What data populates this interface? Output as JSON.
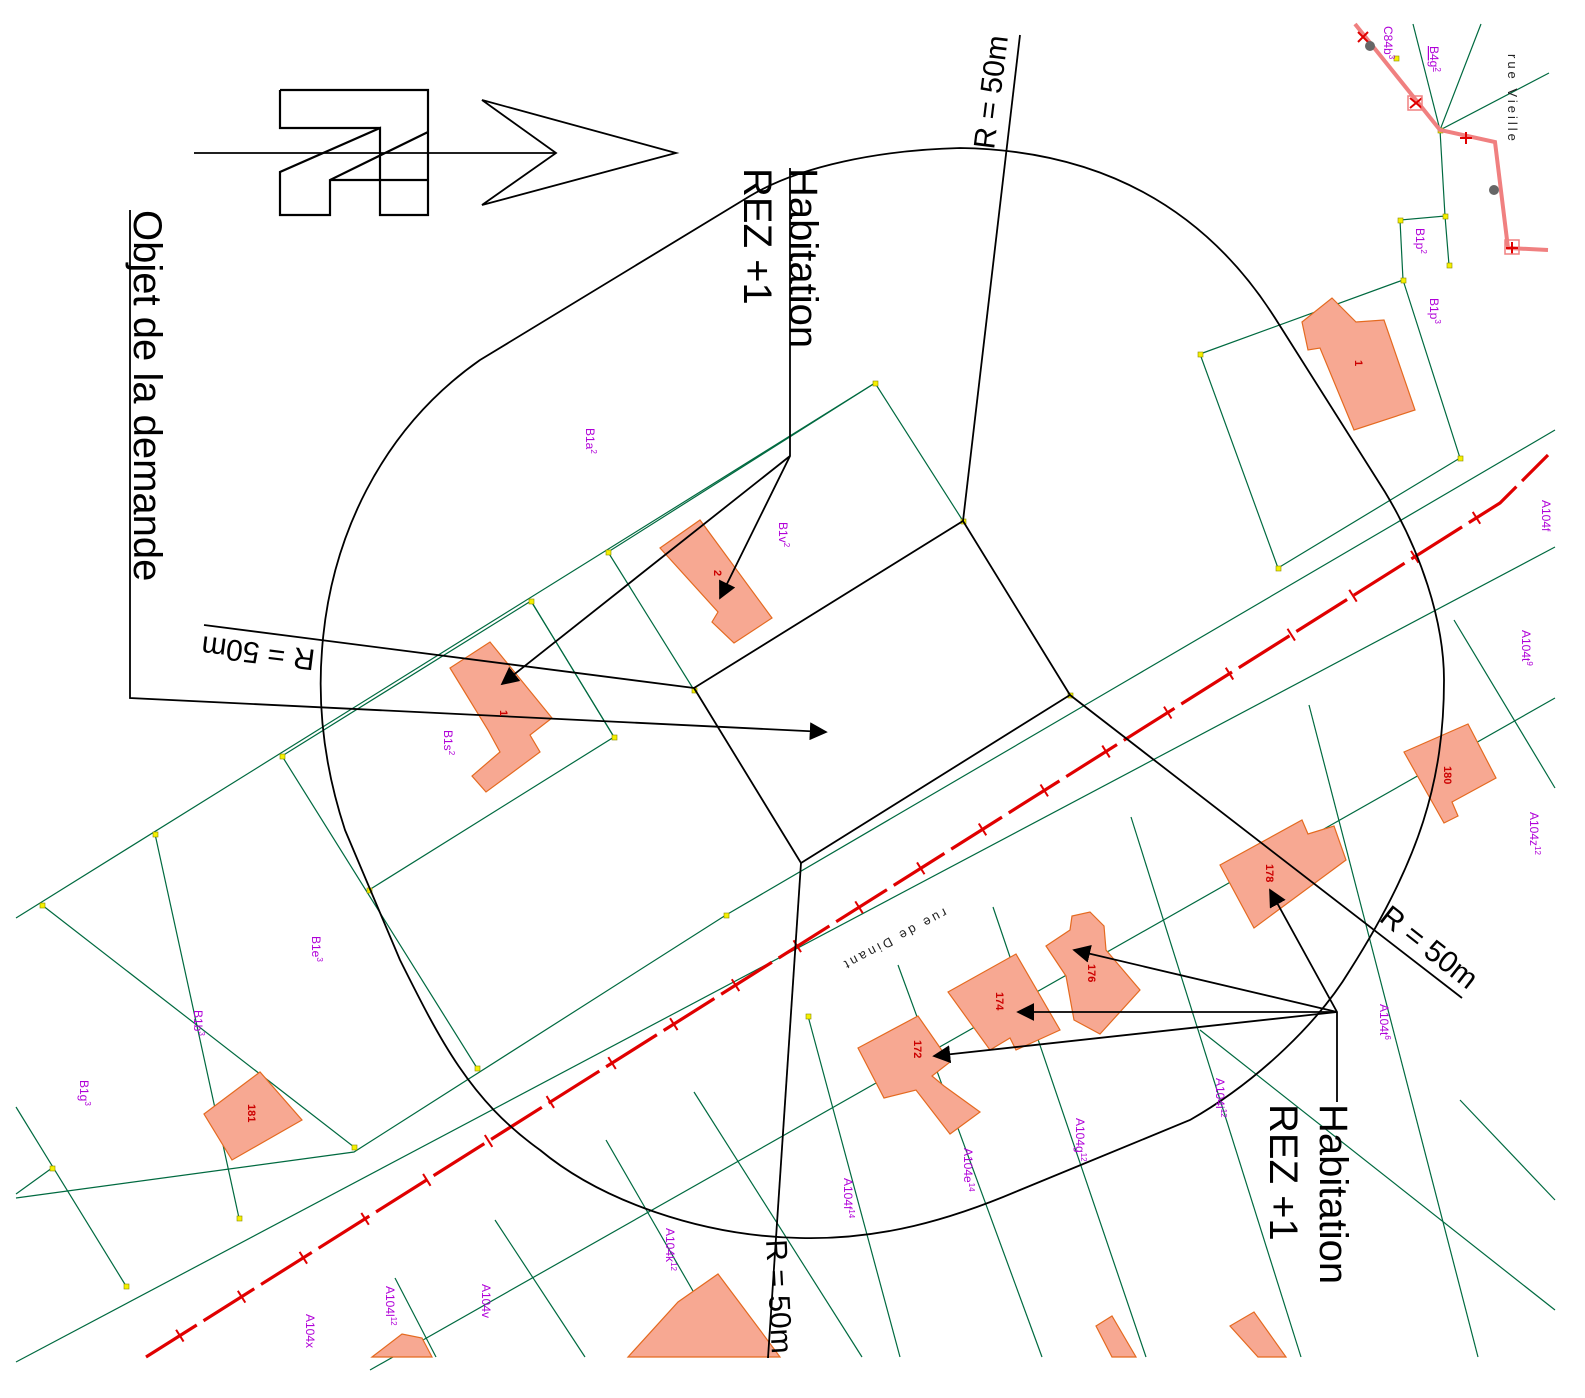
{
  "annotations": {
    "objet": "Objet de la demande",
    "habitation_top": "Habitation",
    "rez_top": "REZ +1",
    "habitation_bottom": "Habitation",
    "rez_bottom": "REZ +1",
    "radius_1": "R = 50m",
    "radius_2": "R = 50m",
    "radius_3": "R = 50m",
    "radius_4": "R = 50m"
  },
  "streets": {
    "dinant": "rue de Dinant",
    "vieille": "rue Vieille"
  },
  "parcels": {
    "b1a": {
      "name": "B1a",
      "sup": "2"
    },
    "b1v": {
      "name": "B1v",
      "sup": "2"
    },
    "b1s": {
      "name": "B1s",
      "sup": "2"
    },
    "b1e": {
      "name": "B1e",
      "sup": "3"
    },
    "b1b": {
      "name": "B1b",
      "sup": "3"
    },
    "b1g": {
      "name": "B1g",
      "sup": "3"
    },
    "b1p2": {
      "name": "B1p",
      "sup": "2"
    },
    "b1p3": {
      "name": "B1p",
      "sup": "3"
    },
    "c84b": {
      "name": "C84b",
      "sup": "3"
    },
    "b4g": {
      "name": "B4g",
      "sup": "2"
    },
    "a104f_top": {
      "name": "A104f",
      "sup": ""
    },
    "a104t9": {
      "name": "A104t",
      "sup": "9"
    },
    "a104z12": {
      "name": "A104z",
      "sup": "12"
    },
    "a104t6": {
      "name": "A104t",
      "sup": "6"
    },
    "a104i12": {
      "name": "A104i",
      "sup": "12"
    },
    "a104g12": {
      "name": "A104g",
      "sup": "12"
    },
    "a104e14": {
      "name": "A104e",
      "sup": "14"
    },
    "a104f14": {
      "name": "A104f",
      "sup": "14"
    },
    "a104k12": {
      "name": "A104k",
      "sup": "12"
    },
    "a104v": {
      "name": "A104v",
      "sup": ""
    },
    "a104l12": {
      "name": "A104l",
      "sup": "12"
    },
    "a104x": {
      "name": "A104x",
      "sup": ""
    }
  },
  "buildings": {
    "n1_top": "1",
    "n2": "2",
    "n1_left": "1",
    "n180": "180",
    "n178": "178",
    "n176": "176",
    "n174": "174",
    "n172": "172",
    "n181": "181"
  },
  "colors": {
    "parcel_line": "#006a40",
    "building_fill": "#f7a892",
    "building_stroke": "#e46a20",
    "road_axis": "#e00000",
    "parcel_text": "#b000d8",
    "vertex": "#f5f000"
  },
  "icons": {
    "north_arrow": "north-arrow-icon"
  }
}
